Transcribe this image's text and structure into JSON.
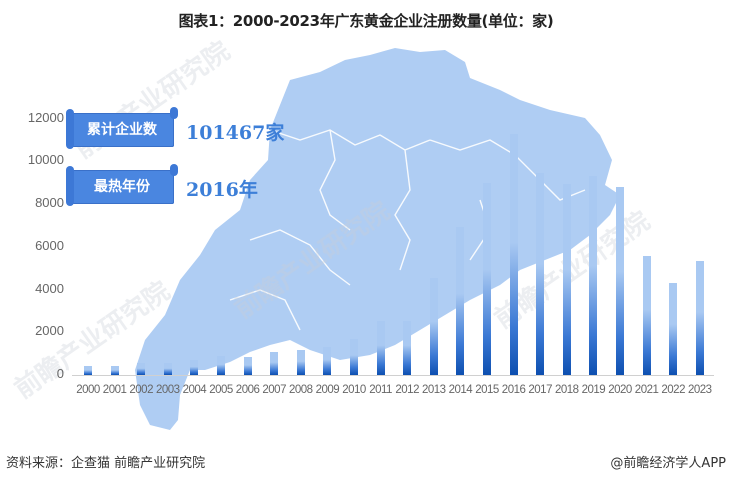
{
  "title": "图表1：2000-2023年广东黄金企业注册数量(单位：家)",
  "cards": [
    {
      "label": "累计企业数",
      "value": "101467家"
    },
    {
      "label": "最热年份",
      "value": "2016年"
    }
  ],
  "footer": {
    "source": "资料来源：企查猫 前瞻产业研究院",
    "credit": "@前瞻经济学人APP"
  },
  "watermark": "前瞻产业研究院",
  "colors": {
    "bar_top": "#a9c9f2",
    "bar_bottom": "#0d4fb0",
    "map": "#a9c9f2",
    "card": "#4a86e0",
    "value_text": "#3d7fd8"
  },
  "chart_data": {
    "type": "bar",
    "title": "图表1：2000-2023年广东黄金企业注册数量(单位：家)",
    "xlabel": "",
    "ylabel": "单位：家",
    "ylim": [
      0,
      12000
    ],
    "yticks": [
      "0",
      "2000",
      "4000",
      "6000",
      "8000",
      "10000",
      "12000"
    ],
    "grid": false,
    "categories": [
      "2000",
      "2001",
      "2002",
      "2003",
      "2004",
      "2005",
      "2006",
      "2007",
      "2008",
      "2009",
      "2010",
      "2011",
      "2012",
      "2013",
      "2014",
      "2015",
      "2016",
      "2017",
      "2018",
      "2019",
      "2020",
      "2021",
      "2022",
      "2023"
    ],
    "values": [
      400,
      400,
      550,
      550,
      700,
      900,
      850,
      1100,
      1150,
      1300,
      1700,
      2550,
      2550,
      4550,
      6950,
      9000,
      11300,
      9450,
      8950,
      9350,
      8800,
      5600,
      4300,
      5350
    ],
    "annotations": [
      "累计企业数 101467家",
      "最热年份 2016年"
    ]
  }
}
